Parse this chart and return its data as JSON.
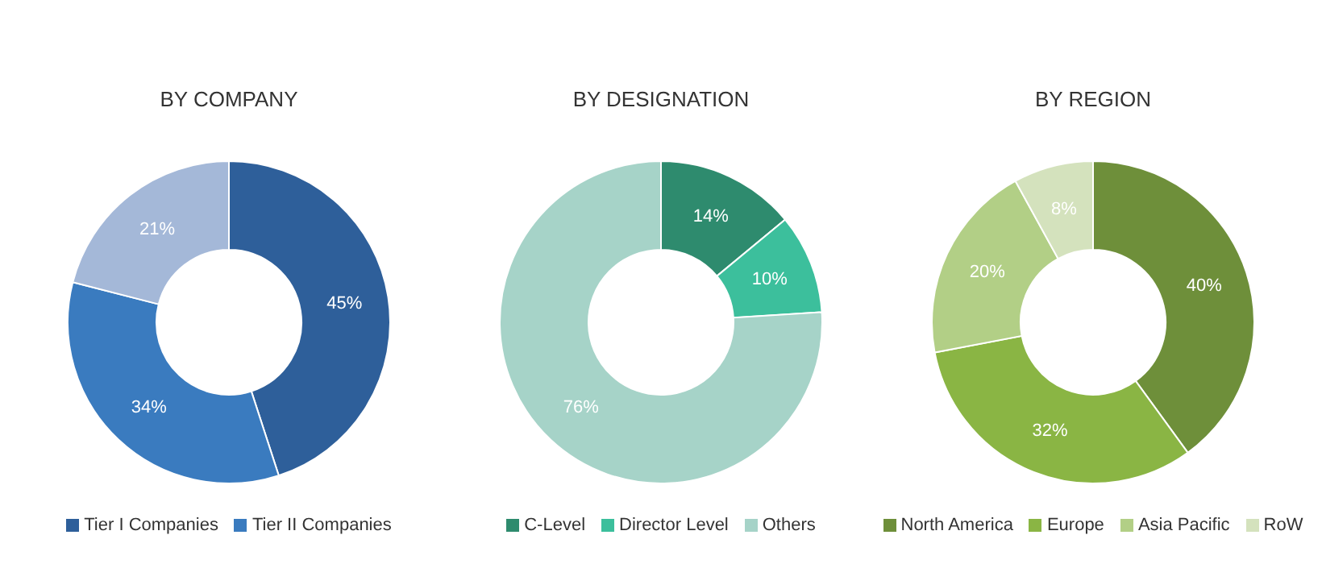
{
  "chart_data": [
    {
      "type": "donut",
      "title": "BY COMPANY",
      "categories": [
        "Tier I Companies",
        "Tier II Companies",
        null
      ],
      "values": [
        45,
        34,
        21
      ],
      "colors": [
        "#2e5f9a",
        "#3a7bbf",
        "#a4b8d8"
      ],
      "value_labels": [
        "45%",
        "34%",
        "21%"
      ],
      "legend": "bottom"
    },
    {
      "type": "donut",
      "title": "BY DESIGNATION",
      "categories": [
        "C-Level",
        "Director Level",
        "Others"
      ],
      "values": [
        14,
        10,
        76
      ],
      "colors": [
        "#2e8b6e",
        "#3cbf9c",
        "#a6d3c8"
      ],
      "value_labels": [
        "14%",
        "10%",
        "76%"
      ],
      "legend": "bottom"
    },
    {
      "type": "donut",
      "title": "BY REGION",
      "categories": [
        "North America",
        "Europe",
        "Asia Pacific",
        "RoW"
      ],
      "values": [
        40,
        32,
        20,
        8
      ],
      "colors": [
        "#6e8f3a",
        "#8ab544",
        "#b2cf86",
        "#d4e2bd"
      ],
      "value_labels": [
        "40%",
        "32%",
        "20%",
        "8%"
      ],
      "legend": "bottom"
    }
  ]
}
